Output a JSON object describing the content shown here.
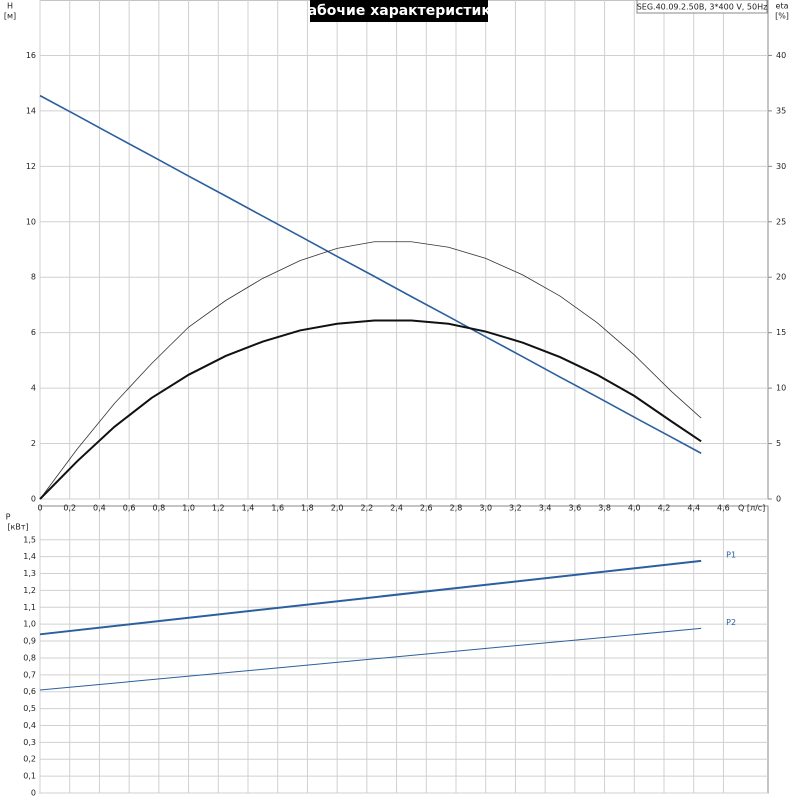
{
  "chart_data": [
    {
      "type": "line",
      "title": "Рабочие характеристики",
      "subtitle": "SEG.40.09.2.50B, 3*400 V, 50Hz",
      "xlabel": "Q [л/с]",
      "ylabel": "H",
      "yunit": "[м]",
      "y2label": "eta",
      "y2unit": "[%]",
      "x": [
        0,
        0.25,
        0.5,
        0.75,
        1.0,
        1.25,
        1.5,
        1.75,
        2.0,
        2.25,
        2.5,
        2.75,
        3.0,
        3.25,
        3.5,
        3.75,
        4.0,
        4.25,
        4.45
      ],
      "series": [
        {
          "color": "#2b5f9e",
          "width": 1.6,
          "values": [
            14.55,
            13.83,
            13.1,
            12.38,
            11.65,
            10.93,
            10.2,
            9.48,
            8.75,
            8.03,
            7.3,
            6.58,
            5.85,
            5.13,
            4.4,
            3.68,
            2.95,
            2.23,
            1.65
          ]
        },
        {
          "color": "#333333",
          "width": 0.8,
          "axis": "y2",
          "values": [
            0,
            4.5,
            8.6,
            12.2,
            15.5,
            17.9,
            19.9,
            21.5,
            22.6,
            23.2,
            23.2,
            22.7,
            21.7,
            20.2,
            18.3,
            15.9,
            13.0,
            9.7,
            7.3
          ]
        },
        {
          "color": "#111111",
          "width": 2,
          "axis": "y2",
          "values": [
            0,
            3.4,
            6.5,
            9.1,
            11.2,
            12.9,
            14.2,
            15.2,
            15.8,
            16.1,
            16.1,
            15.8,
            15.1,
            14.1,
            12.8,
            11.2,
            9.3,
            7.0,
            5.2
          ]
        }
      ],
      "xlim": [
        0,
        4.9
      ],
      "xticks": [
        0,
        {
          "value": 0.2,
          "label": "0,2"
        },
        {
          "value": 0.4,
          "label": "0,4"
        },
        {
          "value": 0.6,
          "label": "0,6"
        },
        {
          "value": 0.8,
          "label": "0,8"
        },
        {
          "value": 1.0,
          "label": "1,0"
        },
        {
          "value": 1.2,
          "label": "1,2"
        },
        {
          "value": 1.4,
          "label": "1,4"
        },
        {
          "value": 1.6,
          "label": "1,6"
        },
        {
          "value": 1.8,
          "label": "1,8"
        },
        {
          "value": 2.0,
          "label": "2,0"
        },
        {
          "value": 2.2,
          "label": "2,2"
        },
        {
          "value": 2.4,
          "label": "2,4"
        },
        {
          "value": 2.6,
          "label": "2,6"
        },
        {
          "value": 2.8,
          "label": "2,8"
        },
        {
          "value": 3.0,
          "label": "3,0"
        },
        {
          "value": 3.2,
          "label": "3,2"
        },
        {
          "value": 3.4,
          "label": "3,4"
        },
        {
          "value": 3.6,
          "label": "3,6"
        },
        {
          "value": 3.8,
          "label": "3,8"
        },
        {
          "value": 4.0,
          "label": "4,0"
        },
        {
          "value": 4.2,
          "label": "4,2"
        },
        {
          "value": 4.4,
          "label": "4,4"
        },
        {
          "value": 4.6,
          "label": "4,6"
        }
      ],
      "ylim": [
        0,
        18
      ],
      "yticks": [
        0,
        2,
        4,
        6,
        8,
        10,
        12,
        14,
        16
      ],
      "y2lim": [
        0,
        45
      ],
      "y2ticks": [
        0,
        5,
        10,
        15,
        20,
        25,
        30,
        35,
        40
      ],
      "grid": true
    },
    {
      "type": "line",
      "ylabel": "P",
      "yunit": "[кВт]",
      "x": [
        0,
        4.45
      ],
      "series": [
        {
          "name": "P1",
          "color": "#2b5f9e",
          "width": 2,
          "values": [
            0.94,
            1.375
          ]
        },
        {
          "name": "P2",
          "color": "#2b5f9e",
          "width": 1,
          "values": [
            0.61,
            0.975
          ]
        }
      ],
      "xlim": [
        0,
        4.9
      ],
      "xticks": [
        0,
        0.2,
        0.4,
        0.6,
        0.8,
        1.0,
        1.2,
        1.4,
        1.6,
        1.8,
        2.0,
        2.2,
        2.4,
        2.6,
        2.8,
        3.0,
        3.2,
        3.4,
        3.6,
        3.8,
        4.0,
        4.2,
        4.4,
        4.6
      ],
      "ylim": [
        0,
        1.7
      ],
      "yticks": [
        0,
        {
          "value": 0.1,
          "label": "0,1"
        },
        {
          "value": 0.2,
          "label": "0,2"
        },
        {
          "value": 0.3,
          "label": "0,3"
        },
        {
          "value": 0.4,
          "label": "0,4"
        },
        {
          "value": 0.5,
          "label": "0,5"
        },
        {
          "value": 0.6,
          "label": "0,6"
        },
        {
          "value": 0.7,
          "label": "0,7"
        },
        {
          "value": 0.8,
          "label": "0,8"
        },
        {
          "value": 0.9,
          "label": "0,9"
        },
        {
          "value": 1.0,
          "label": "1,0"
        },
        {
          "value": 1.1,
          "label": "1,1"
        },
        {
          "value": 1.2,
          "label": "1,2"
        },
        {
          "value": 1.3,
          "label": "1,3"
        },
        {
          "value": 1.4,
          "label": "1,4"
        },
        {
          "value": 1.5,
          "label": "1,5"
        }
      ],
      "grid": true
    }
  ]
}
